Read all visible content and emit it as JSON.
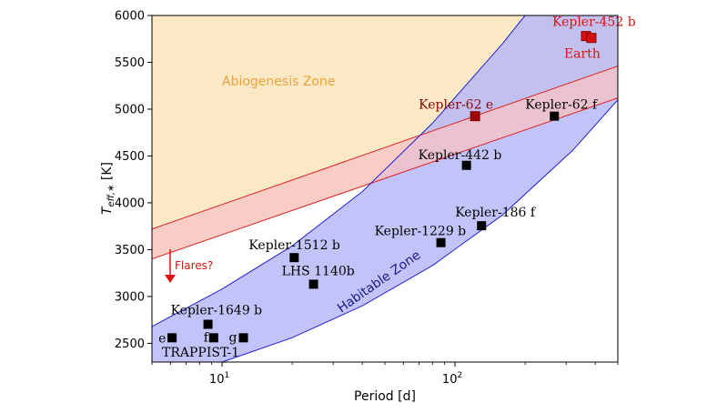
{
  "chart_data": {
    "type": "scatter",
    "xlabel": "Period [d]",
    "ylabel_main": "T",
    "ylabel_sub": "eff,∗",
    "ylabel_unit": " [K]",
    "xscale": "log",
    "xlim": [
      5,
      500
    ],
    "ylim": [
      2300,
      6000
    ],
    "x_ticks": [
      {
        "value": 10,
        "label_base": "10",
        "label_exp": "1"
      },
      {
        "value": 100,
        "label_base": "10",
        "label_exp": "2"
      }
    ],
    "y_ticks": [
      2500,
      3000,
      3500,
      4000,
      4500,
      5000,
      5500,
      6000
    ],
    "grid": false,
    "colors": {
      "abiogenesis_fill": "#fbe9c6",
      "abiogenesis_text": "#e8a33c",
      "habitable_fill": "#b3b5f7",
      "habitable_edge": "#2323d6",
      "habitable_text": "#1a1a8c",
      "band_fill": "#f8c3c6",
      "band_edge": "#e02020",
      "red_text": "#e01010",
      "dark_red": "#8b0000",
      "black": "#000000"
    },
    "regions": {
      "abiogenesis_label": "Abiogenesis Zone",
      "habitable_label": "Habitable Zone",
      "abiogenesis_upper_curve": [
        [
          5,
          3720
        ],
        [
          500,
          5460
        ]
      ],
      "abiogenesis_lower_curve": [
        [
          5,
          3400
        ],
        [
          500,
          5120
        ]
      ],
      "habitable_left_curve": [
        [
          5,
          2680
        ],
        [
          10,
          3080
        ],
        [
          20,
          3540
        ],
        [
          40,
          4120
        ],
        [
          80,
          4850
        ],
        [
          160,
          5700
        ],
        [
          180,
          5860
        ],
        [
          200,
          6000
        ]
      ],
      "habitable_right_curve": [
        [
          10,
          2300
        ],
        [
          20,
          2560
        ],
        [
          40,
          2900
        ],
        [
          80,
          3330
        ],
        [
          160,
          3870
        ],
        [
          320,
          4560
        ],
        [
          500,
          5100
        ]
      ],
      "flares_label": "Flares?"
    },
    "points": [
      {
        "name": "Kepler-452 b",
        "x": 365,
        "y": 5780,
        "color": "red"
      },
      {
        "name": "Earth",
        "x": 385,
        "y": 5760,
        "color": "red"
      },
      {
        "name": "Kepler-62 e",
        "x": 122,
        "y": 4925,
        "color": "dark_red"
      },
      {
        "name": "Kepler-62 f",
        "x": 267,
        "y": 4925,
        "color": "black"
      },
      {
        "name": "Kepler-442 b",
        "x": 112,
        "y": 4400,
        "color": "black"
      },
      {
        "name": "Kepler-186 f",
        "x": 130,
        "y": 3755,
        "color": "black"
      },
      {
        "name": "Kepler-1229 b",
        "x": 87,
        "y": 3575,
        "color": "black"
      },
      {
        "name": "Kepler-1512 b",
        "x": 20.4,
        "y": 3415,
        "color": "black"
      },
      {
        "name": "LHS 1140b",
        "x": 24.7,
        "y": 3131,
        "color": "black"
      },
      {
        "name": "Kepler-1649 b",
        "x": 8.7,
        "y": 2703,
        "color": "black"
      },
      {
        "name": "e",
        "x": 6.1,
        "y": 2559,
        "color": "black"
      },
      {
        "name": "f",
        "x": 9.2,
        "y": 2559,
        "color": "black"
      },
      {
        "name": "g",
        "x": 12.35,
        "y": 2559,
        "color": "black"
      }
    ],
    "group_label": "TRAPPIST-1"
  }
}
